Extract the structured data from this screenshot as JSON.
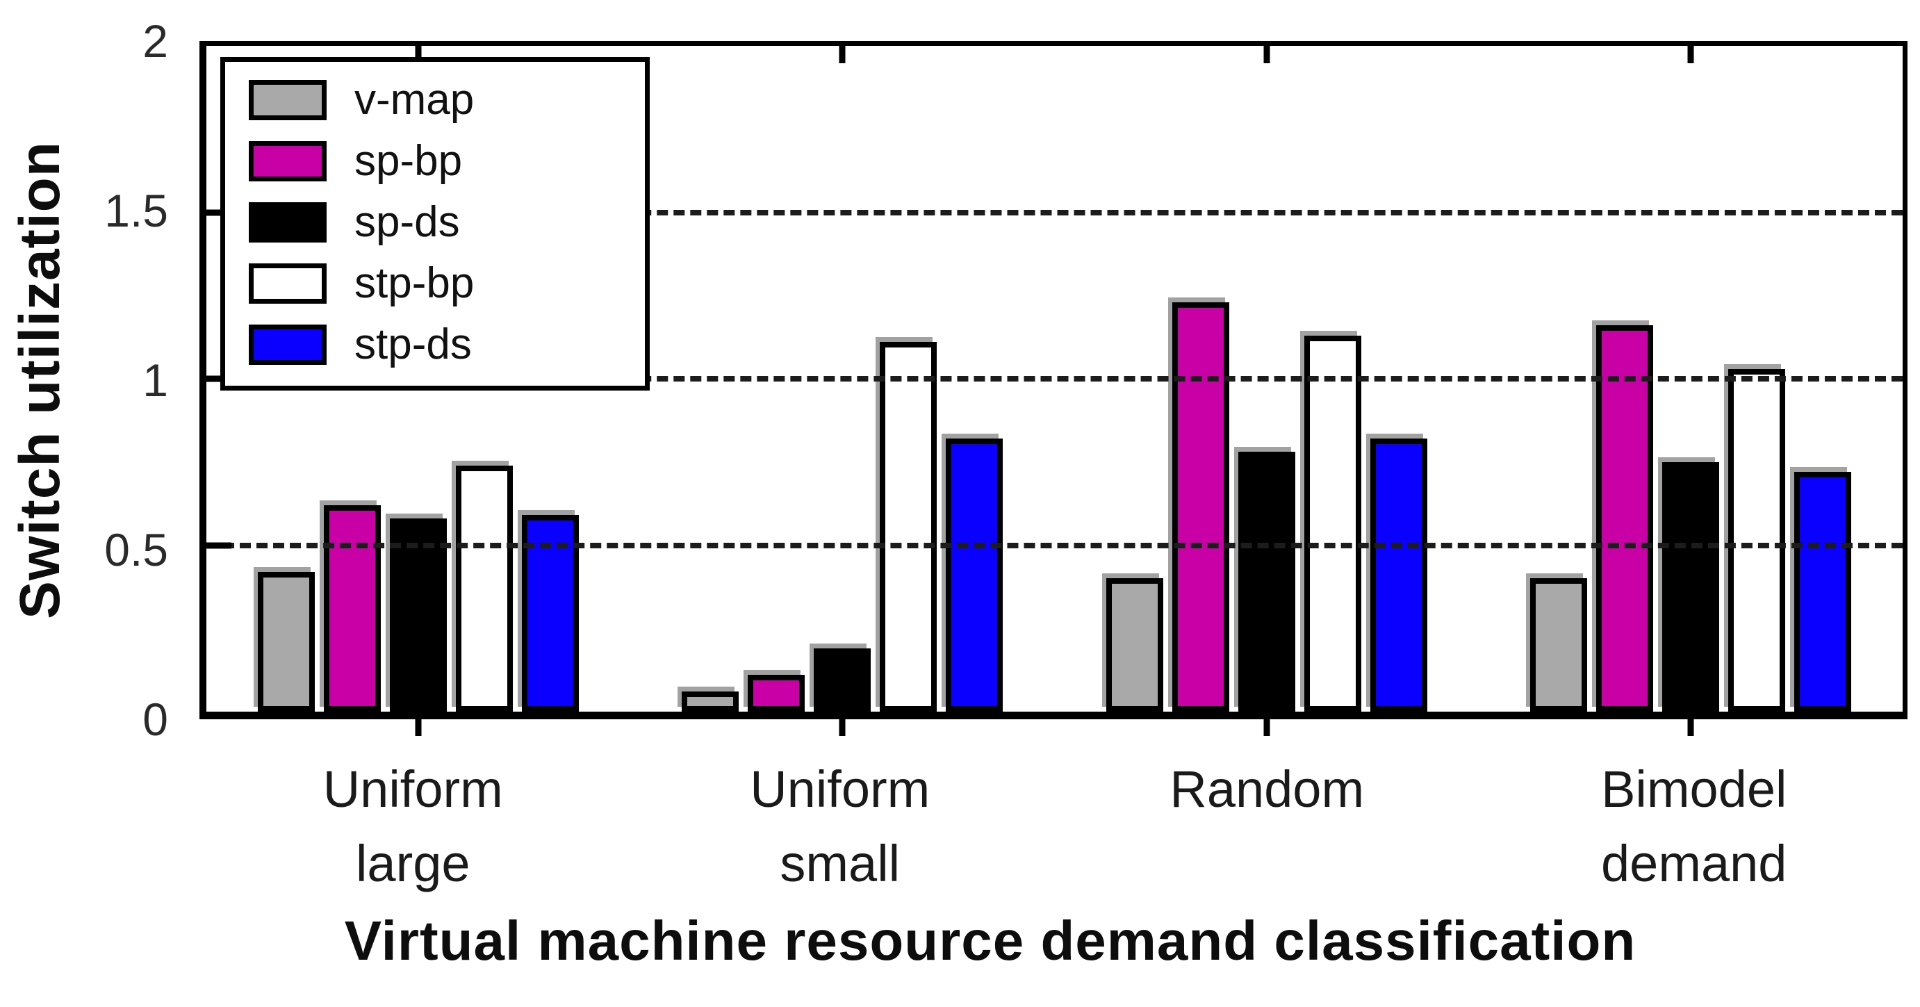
{
  "chart_data": {
    "type": "bar",
    "title": "",
    "categories": [
      "Uniform\nlarge",
      "Uniform\nsmall",
      "Random",
      "Bimodel\ndemand"
    ],
    "series": [
      {
        "name": "v-map",
        "color": "#a9a9a9",
        "values": [
          0.42,
          0.06,
          0.4,
          0.4
        ]
      },
      {
        "name": "sp-bp",
        "color": "#c800a6",
        "values": [
          0.62,
          0.11,
          1.23,
          1.16
        ]
      },
      {
        "name": "sp-ds",
        "color": "#000000",
        "values": [
          0.58,
          0.19,
          0.78,
          0.75
        ]
      },
      {
        "name": "stp-bp",
        "color": "#ffffff",
        "values": [
          0.74,
          1.11,
          1.13,
          1.03
        ]
      },
      {
        "name": "stp-ds",
        "color": "#0a00ff",
        "values": [
          0.59,
          0.82,
          0.82,
          0.72
        ]
      }
    ],
    "xlabel": "Virtual machine resource demand classification",
    "ylabel": "Switch utilization",
    "ylim": [
      0,
      2
    ],
    "yticks": [
      0,
      0.5,
      1,
      1.5,
      2
    ],
    "ytick_labels": [
      "0",
      "0.5",
      "1",
      "1.5",
      "2"
    ],
    "gridlines": [
      0.5,
      1,
      1.5
    ],
    "grid": "dashed horizontal",
    "legend_position": "top-left inside",
    "bar_outline_color": "#000000",
    "axis_color": "#000000"
  }
}
